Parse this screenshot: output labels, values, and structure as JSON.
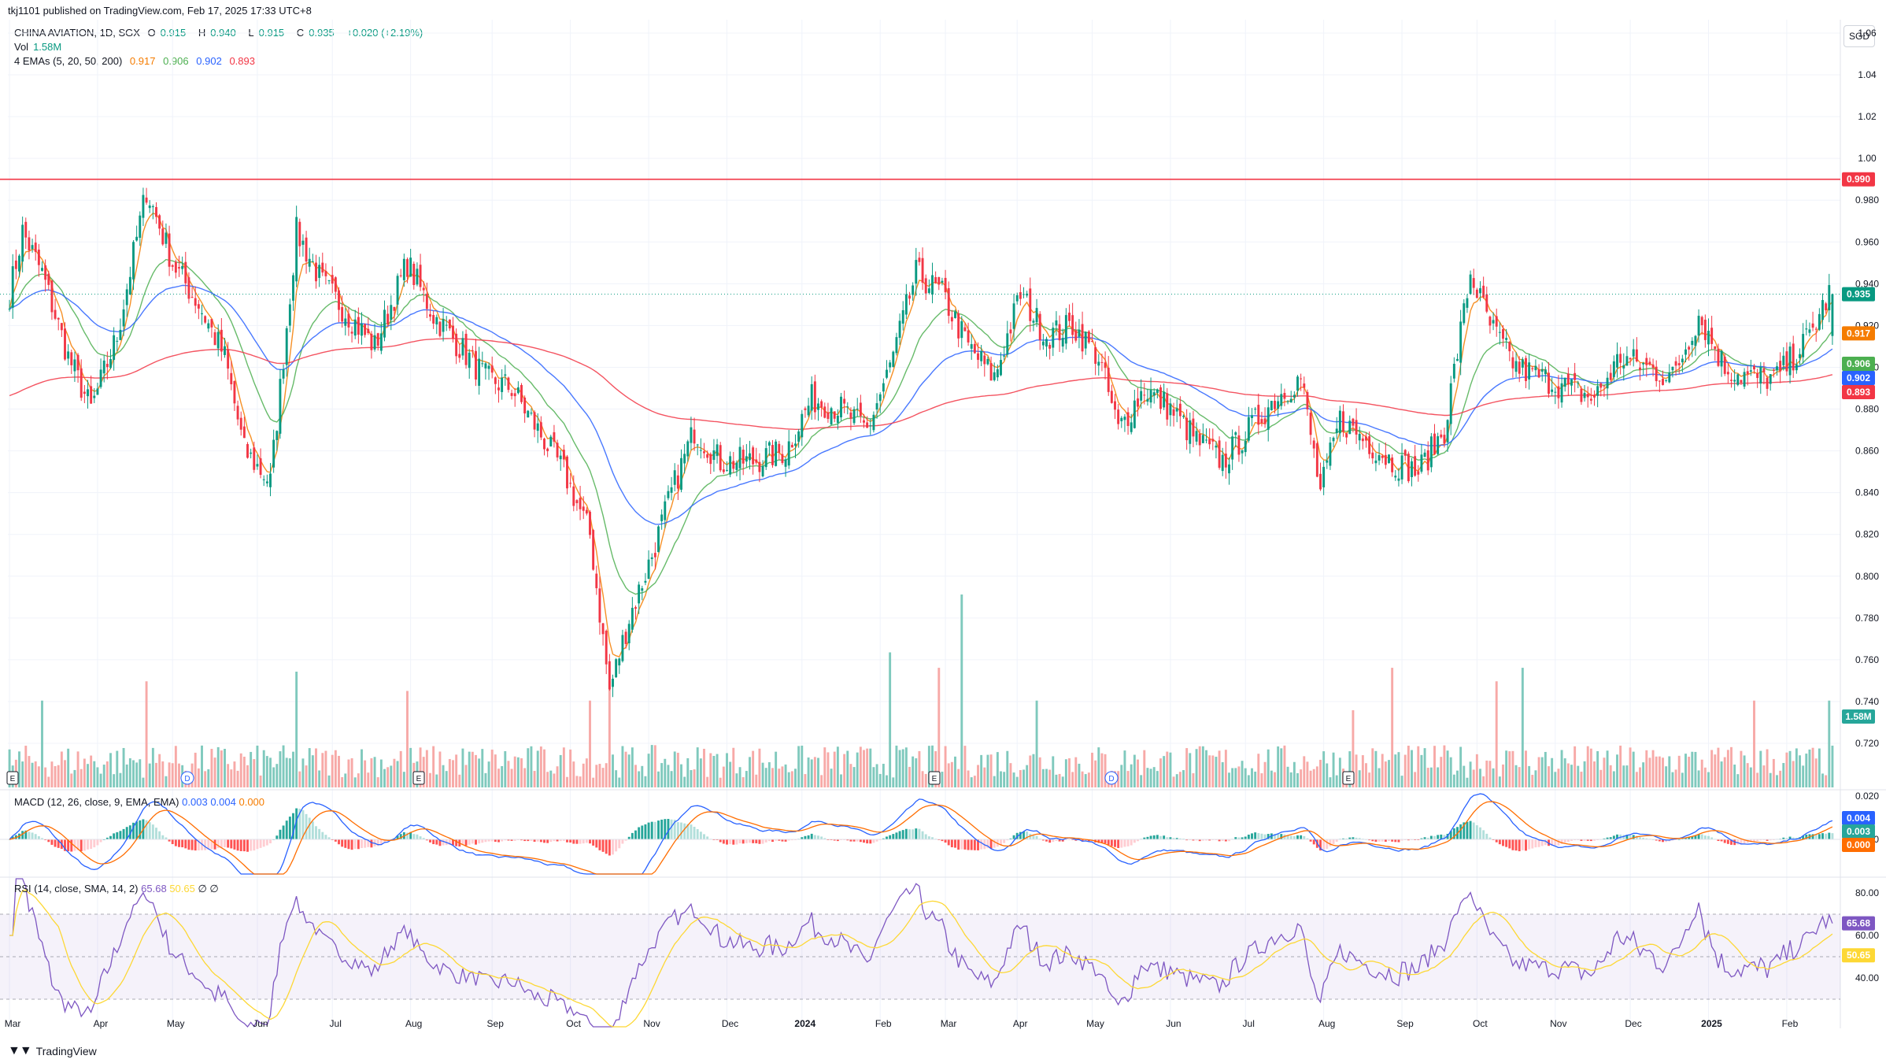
{
  "header": {
    "published": "tkj1101 published on TradingView.com, Feb 17, 2025 17:33 UTC+8",
    "symbol": "CHINA AVIATION, 1D, SGX",
    "o_label": "O",
    "o": "0.915",
    "h_label": "H",
    "h": "0.940",
    "l_label": "L",
    "l": "0.915",
    "c_label": "C",
    "c": "0.935",
    "change": "+0.020 (+2.19%)",
    "vol_label": "Vol",
    "vol": "1.58M",
    "ema_label": "4 EMAs (5, 20, 50, 200)",
    "ema5": "0.917",
    "ema20": "0.906",
    "ema50": "0.902",
    "ema200": "0.893",
    "currency": "SGD"
  },
  "macd_legend": {
    "label": "MACD (12, 26, close, 9, EMA, EMA)",
    "v1": "0.003",
    "v2": "0.004",
    "v3": "0.000"
  },
  "rsi_legend": {
    "label": "RSI (14, close, SMA, 14, 2)",
    "v1": "65.68",
    "v2": "50.65",
    "v3": "∅ ∅"
  },
  "footer": {
    "brand": "TradingView"
  },
  "colors": {
    "up": "#089981",
    "down": "#f23645",
    "ema5": "#f57c00",
    "ema20": "#4caf50",
    "ema50": "#2962ff",
    "ema200": "#f23645",
    "rsi": "#7e57c2",
    "rsi_ma": "#fdd835",
    "resistance": "#f23645"
  },
  "chart_data": [
    {
      "type": "candlestick",
      "panel": "price",
      "x_labels": [
        "Mar",
        "Apr",
        "May",
        "Jun",
        "Jul",
        "Aug",
        "Sep",
        "Oct",
        "Nov",
        "Dec",
        "2024",
        "Feb",
        "Mar",
        "Apr",
        "May",
        "Jun",
        "Jul",
        "Aug",
        "Sep",
        "Oct",
        "Nov",
        "Dec",
        "2025",
        "Feb"
      ],
      "y_ticks": [
        "1.06",
        "1.04",
        "1.02",
        "1.00",
        "0.980",
        "0.960",
        "0.940",
        "0.920",
        "0.900",
        "0.880",
        "0.860",
        "0.840",
        "0.820",
        "0.800",
        "0.780",
        "0.760",
        "0.740",
        "0.720"
      ],
      "ylim": [
        0.7,
        1.06
      ],
      "horizontal_line": {
        "value": 0.99,
        "label": "0.990"
      },
      "last_price": {
        "value": 0.935,
        "label": "0.935"
      },
      "last_labels": [
        {
          "name": "EMA 5",
          "value": 0.917,
          "label": "0.917"
        },
        {
          "name": "EMA 20",
          "value": 0.906,
          "label": "0.906"
        },
        {
          "name": "EMA 50",
          "value": 0.902,
          "label": "0.902"
        },
        {
          "name": "EMA 200",
          "value": 0.893,
          "label": "0.893"
        },
        {
          "name": "Vol",
          "label": "1.58M"
        }
      ],
      "anchors": [
        [
          0,
          0.935
        ],
        [
          4,
          0.965
        ],
        [
          10,
          0.945
        ],
        [
          18,
          0.905
        ],
        [
          25,
          0.88
        ],
        [
          33,
          0.915
        ],
        [
          42,
          0.985
        ],
        [
          50,
          0.95
        ],
        [
          58,
          0.93
        ],
        [
          66,
          0.905
        ],
        [
          72,
          0.86
        ],
        [
          80,
          0.845
        ],
        [
          88,
          0.965
        ],
        [
          96,
          0.94
        ],
        [
          104,
          0.925
        ],
        [
          112,
          0.91
        ],
        [
          122,
          0.95
        ],
        [
          130,
          0.925
        ],
        [
          138,
          0.91
        ],
        [
          146,
          0.895
        ],
        [
          154,
          0.89
        ],
        [
          162,
          0.87
        ],
        [
          170,
          0.85
        ],
        [
          178,
          0.82
        ],
        [
          184,
          0.745
        ],
        [
          190,
          0.78
        ],
        [
          197,
          0.81
        ],
        [
          203,
          0.84
        ],
        [
          210,
          0.87
        ],
        [
          218,
          0.855
        ],
        [
          228,
          0.855
        ],
        [
          238,
          0.86
        ],
        [
          246,
          0.885
        ],
        [
          255,
          0.88
        ],
        [
          263,
          0.87
        ],
        [
          270,
          0.9
        ],
        [
          278,
          0.945
        ],
        [
          286,
          0.935
        ],
        [
          294,
          0.91
        ],
        [
          302,
          0.895
        ],
        [
          310,
          0.935
        ],
        [
          318,
          0.915
        ],
        [
          326,
          0.92
        ],
        [
          334,
          0.905
        ],
        [
          340,
          0.87
        ],
        [
          348,
          0.89
        ],
        [
          356,
          0.88
        ],
        [
          364,
          0.865
        ],
        [
          372,
          0.855
        ],
        [
          380,
          0.87
        ],
        [
          388,
          0.885
        ],
        [
          396,
          0.895
        ],
        [
          402,
          0.84
        ],
        [
          408,
          0.875
        ],
        [
          416,
          0.865
        ],
        [
          424,
          0.855
        ],
        [
          432,
          0.85
        ],
        [
          440,
          0.87
        ],
        [
          448,
          0.945
        ],
        [
          454,
          0.92
        ],
        [
          462,
          0.9
        ],
        [
          470,
          0.895
        ],
        [
          478,
          0.89
        ],
        [
          486,
          0.885
        ],
        [
          494,
          0.905
        ],
        [
          502,
          0.9
        ],
        [
          510,
          0.895
        ],
        [
          518,
          0.925
        ],
        [
          526,
          0.9
        ],
        [
          534,
          0.895
        ],
        [
          542,
          0.895
        ],
        [
          552,
          0.915
        ],
        [
          558,
          0.935
        ]
      ],
      "ema_lines": [
        "EMA 5",
        "EMA 20",
        "EMA 50",
        "EMA 200"
      ]
    },
    {
      "type": "bar",
      "panel": "volume",
      "spikes": [
        [
          10,
          0.45
        ],
        [
          42,
          0.55
        ],
        [
          88,
          0.6
        ],
        [
          122,
          0.5
        ],
        [
          178,
          0.45
        ],
        [
          184,
          0.55
        ],
        [
          270,
          0.7
        ],
        [
          285,
          0.62
        ],
        [
          292,
          1.0
        ],
        [
          315,
          0.45
        ],
        [
          412,
          0.4
        ],
        [
          424,
          0.62
        ],
        [
          456,
          0.55
        ],
        [
          464,
          0.62
        ],
        [
          535,
          0.45
        ],
        [
          558,
          0.45
        ]
      ]
    },
    {
      "type": "histogram",
      "panel": "MACD",
      "y_ticks": [
        "0.020",
        "0.000"
      ],
      "last_labels": [
        {
          "name": "MACD",
          "label": "0.004"
        },
        {
          "name": "Histogram",
          "label": "0.003"
        },
        {
          "name": "Signal",
          "label": "0.000"
        }
      ]
    },
    {
      "type": "line",
      "panel": "RSI",
      "y_ticks": [
        "80.00",
        "60.00",
        "40.00"
      ],
      "upper_band": 70,
      "middle_band": 50,
      "lower_band": 30,
      "last_labels": [
        {
          "name": "RSI",
          "label": "65.68"
        },
        {
          "name": "RSI MA",
          "label": "50.65"
        }
      ]
    }
  ]
}
